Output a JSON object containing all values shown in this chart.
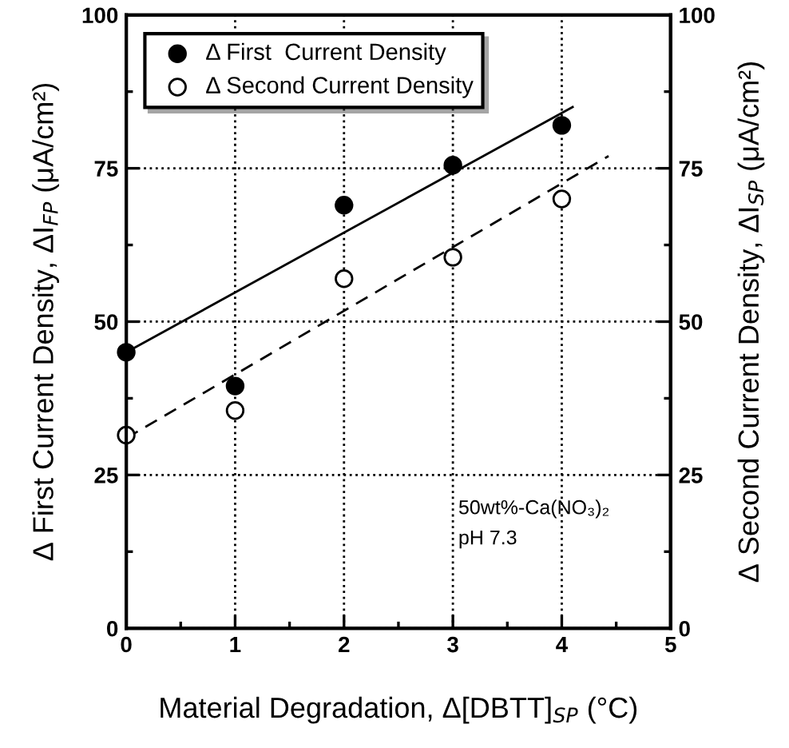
{
  "chart_data": {
    "type": "scatter",
    "xlabel": "Material Degradation, Δ[DBTT]$_{SP}$ (°C)",
    "ylabel": "Δ First Current Density, ΔI$_{FP}$ (μA/cm²)",
    "y2label": "Δ Second Current Density, ΔI$_{SP}$ (μA/cm²)",
    "x": [
      0,
      1,
      2,
      3,
      4
    ],
    "series": [
      {
        "name": "Δ First  Current Density",
        "color": "#000000",
        "marker": "circle",
        "values": [
          45,
          39.5,
          69,
          75.5,
          82
        ]
      },
      {
        "name": "Δ Second Current Density",
        "color": "#000000",
        "marker": "circle",
        "values": [
          31.5,
          35.5,
          57,
          60.5,
          70
        ]
      },
      {
        "type": "line",
        "color": "#000000",
        "line_style": "solid",
        "x": [
          0,
          4.1
        ],
        "values": [
          45,
          85
        ]
      },
      {
        "type": "line",
        "color": "#000000",
        "line_style": "dashed",
        "x": [
          0,
          4.43
        ],
        "values": [
          31,
          77
        ]
      }
    ],
    "xlim": [
      0,
      5
    ],
    "xticks": [
      0,
      1,
      2,
      3,
      4,
      5
    ],
    "ylim": [
      0,
      100
    ],
    "yticks": [
      0,
      25,
      50,
      75,
      100
    ],
    "y2lim": [
      0,
      100
    ],
    "y2ticks": [
      0,
      25,
      50,
      75,
      100
    ],
    "grid": true,
    "legend": "top left",
    "annotations": [
      "50wt%-Ca(NO₃)₂\npH 7.3"
    ]
  }
}
